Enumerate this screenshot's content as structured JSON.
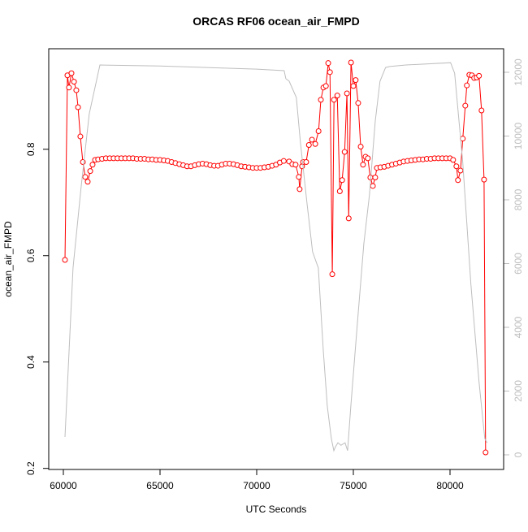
{
  "chart_data": {
    "type": "line",
    "title": "ORCAS RF06 ocean_air_FMPD",
    "xlabel": "UTC Seconds",
    "ylabel": "ocean_air_FMPD",
    "xlim": [
      59244,
      82773
    ],
    "xticks": [
      60000,
      65000,
      70000,
      75000,
      80000
    ],
    "ylim": [
      0.198,
      0.989
    ],
    "yticks": [
      0.2,
      0.4,
      0.6,
      0.8
    ],
    "y2lim": [
      -459,
      12739
    ],
    "y2ticks": [
      0,
      2000,
      4000,
      6000,
      8000,
      10000,
      12000
    ],
    "y2color": "#bebebe",
    "series": [
      {
        "color": "#ff0000",
        "markers": true,
        "x": [
          60084,
          60210,
          60290,
          60420,
          60550,
          60670,
          60760,
          60880,
          61010,
          61130,
          61260,
          61390,
          61510,
          61640,
          61800,
          62000,
          62200,
          62400,
          62600,
          62800,
          63000,
          63200,
          63400,
          63600,
          63800,
          64000,
          64200,
          64400,
          64600,
          64800,
          65000,
          65200,
          65400,
          65600,
          65800,
          66000,
          66200,
          66400,
          66600,
          66800,
          67000,
          67200,
          67400,
          67600,
          67800,
          68000,
          68200,
          68400,
          68600,
          68800,
          69000,
          69200,
          69400,
          69600,
          69800,
          70000,
          70200,
          70400,
          70600,
          70800,
          71000,
          71200,
          71400,
          71676,
          71844,
          72012,
          72180,
          72222,
          72348,
          72400,
          72560,
          72700,
          72860,
          73030,
          73200,
          73320,
          73450,
          73580,
          73700,
          73790,
          73910,
          74000,
          74170,
          74300,
          74420,
          74550,
          74670,
          74760,
          74880,
          75000,
          75120,
          75250,
          75380,
          75500,
          75630,
          75750,
          75880,
          76010,
          76130,
          76220,
          76400,
          76600,
          76800,
          77000,
          77200,
          77400,
          77600,
          77800,
          78000,
          78200,
          78400,
          78600,
          78800,
          79000,
          79200,
          79400,
          79600,
          79800,
          80000,
          80160,
          80330,
          80410,
          80540,
          80660,
          80790,
          80870,
          81000,
          81130,
          81250,
          81380,
          81500,
          81630,
          81760,
          81840
        ],
        "values": [
          0.592,
          0.939,
          0.916,
          0.943,
          0.927,
          0.911,
          0.879,
          0.824,
          0.776,
          0.748,
          0.739,
          0.759,
          0.771,
          0.78,
          0.781,
          0.782,
          0.783,
          0.783,
          0.783,
          0.783,
          0.783,
          0.783,
          0.783,
          0.783,
          0.782,
          0.782,
          0.782,
          0.781,
          0.781,
          0.78,
          0.78,
          0.779,
          0.778,
          0.776,
          0.774,
          0.772,
          0.77,
          0.768,
          0.768,
          0.77,
          0.772,
          0.773,
          0.772,
          0.77,
          0.769,
          0.769,
          0.771,
          0.773,
          0.773,
          0.772,
          0.77,
          0.768,
          0.767,
          0.766,
          0.765,
          0.765,
          0.765,
          0.766,
          0.767,
          0.769,
          0.771,
          0.775,
          0.778,
          0.777,
          0.772,
          0.771,
          0.748,
          0.725,
          0.768,
          0.776,
          0.776,
          0.808,
          0.818,
          0.81,
          0.834,
          0.893,
          0.916,
          0.919,
          0.962,
          0.945,
          0.565,
          0.893,
          0.901,
          0.721,
          0.742,
          0.795,
          0.905,
          0.67,
          0.963,
          0.919,
          0.93,
          0.887,
          0.805,
          0.771,
          0.786,
          0.783,
          0.747,
          0.731,
          0.747,
          0.765,
          0.766,
          0.767,
          0.769,
          0.771,
          0.773,
          0.775,
          0.777,
          0.778,
          0.779,
          0.78,
          0.781,
          0.781,
          0.782,
          0.782,
          0.783,
          0.783,
          0.783,
          0.783,
          0.783,
          0.78,
          0.768,
          0.742,
          0.76,
          0.82,
          0.882,
          0.92,
          0.94,
          0.939,
          0.934,
          0.935,
          0.938,
          0.873,
          0.743,
          0.23
        ]
      },
      {
        "color": "#bebebe",
        "axis": "y2",
        "markers": false,
        "x": [
          60084,
          60500,
          60920,
          61340,
          61890,
          65000,
          70000,
          71420,
          71510,
          71680,
          72050,
          72260,
          72600,
          72890,
          73190,
          73440,
          73650,
          73860,
          73990,
          74070,
          74200,
          74360,
          74570,
          74700,
          74870,
          75200,
          75540,
          75830,
          76130,
          76380,
          76670,
          76880,
          77720,
          80030,
          80240,
          80660,
          81080,
          81500,
          81800,
          81920
        ],
        "values": [
          560,
          5860,
          8410,
          10700,
          12230,
          12200,
          12100,
          12050,
          11800,
          11720,
          11210,
          9810,
          7900,
          6370,
          5860,
          3310,
          1530,
          510,
          130,
          250,
          380,
          300,
          380,
          130,
          1530,
          4080,
          6620,
          8150,
          10450,
          11720,
          12150,
          12180,
          12230,
          12300,
          11970,
          9170,
          5350,
          2290,
          510,
          380
        ]
      }
    ]
  }
}
